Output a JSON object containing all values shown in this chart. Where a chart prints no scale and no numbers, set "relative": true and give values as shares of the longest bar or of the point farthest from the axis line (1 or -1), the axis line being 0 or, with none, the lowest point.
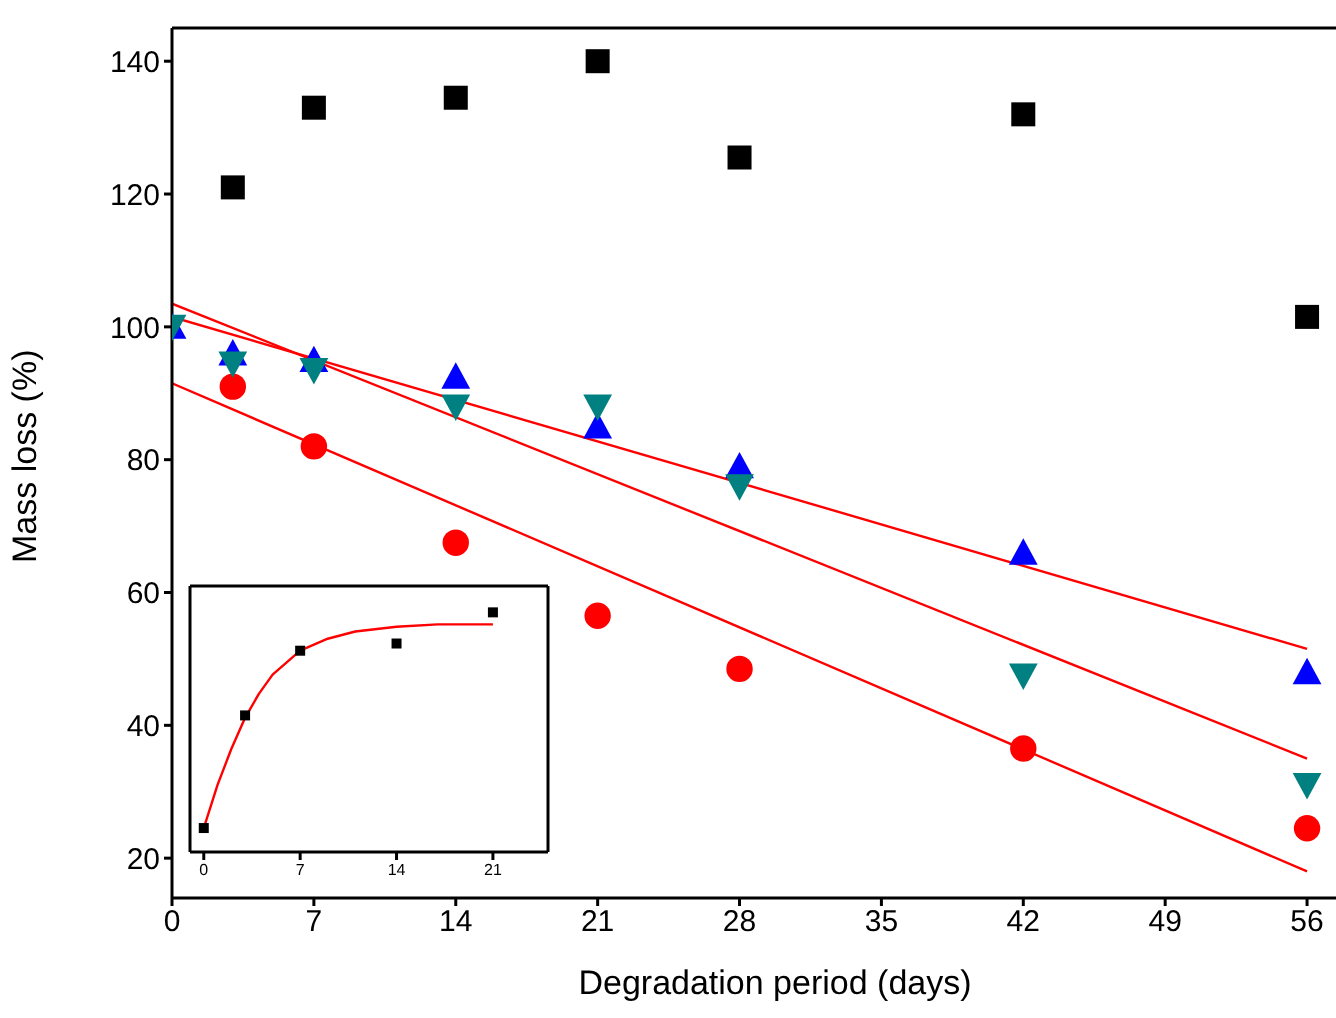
{
  "chart_data": [
    {
      "type": "scatter",
      "xlabel": "Degradation period (days)",
      "ylabel": "Mass loss (%)",
      "xlim": [
        0,
        59.5
      ],
      "xticks": [
        0,
        7,
        14,
        21,
        28,
        35,
        42,
        49,
        56
      ],
      "ylim": [
        14,
        145
      ],
      "yticks": [
        20,
        40,
        60,
        80,
        100,
        120,
        140
      ],
      "grid": false,
      "legend": false,
      "x": [
        0,
        3,
        7,
        14,
        21,
        28,
        42,
        56
      ],
      "series": [
        {
          "color": "#000000",
          "marker": "square",
          "values": [
            null,
            121,
            133,
            134.5,
            140,
            125.5,
            132,
            101.5
          ]
        },
        {
          "color": "#ff0000",
          "marker": "circle",
          "values": [
            null,
            91,
            82,
            67.5,
            56.5,
            48.5,
            36.5,
            24.5
          ]
        },
        {
          "color": "#0000ff",
          "marker": "triangle",
          "values": [
            100,
            96,
            95,
            92.5,
            85,
            79,
            66,
            48
          ]
        },
        {
          "color": "#008080",
          "marker": "triangle-down",
          "values": [
            100,
            94.5,
            93.5,
            88,
            88,
            76,
            47.5,
            31
          ]
        },
        {
          "type": "line",
          "color": "#ff0000",
          "marker": "none",
          "line_style": "solid",
          "x": [
            0,
            56
          ],
          "values": [
            101.5,
            51.5
          ]
        },
        {
          "type": "line",
          "color": "#ff0000",
          "marker": "none",
          "line_style": "solid",
          "x": [
            0,
            56
          ],
          "values": [
            103.5,
            35
          ]
        },
        {
          "type": "line",
          "color": "#ff0000",
          "marker": "none",
          "line_style": "solid",
          "x": [
            0,
            56
          ],
          "values": [
            91.5,
            18
          ]
        }
      ]
    },
    {
      "type": "scatter",
      "relative": true,
      "tick_labels": "x",
      "xlim": [
        -1,
        25
      ],
      "xticks": [
        0,
        7,
        14,
        21
      ],
      "legend": false,
      "x": [
        0,
        3,
        7,
        14,
        21
      ],
      "series": [
        {
          "color": "#000000",
          "marker": "square",
          "values": [
            0.1,
            0.57,
            0.84,
            0.87,
            1
          ]
        },
        {
          "type": "line",
          "color": "#ff0000",
          "marker": "none",
          "line_style": "solid",
          "x": [
            0,
            1,
            2,
            3,
            4,
            5,
            6,
            7,
            9,
            11,
            14,
            17,
            21
          ],
          "values": [
            0.1,
            0.28,
            0.43,
            0.56,
            0.66,
            0.74,
            0.79,
            0.84,
            0.89,
            0.92,
            0.94,
            0.95,
            0.95
          ]
        }
      ]
    }
  ]
}
